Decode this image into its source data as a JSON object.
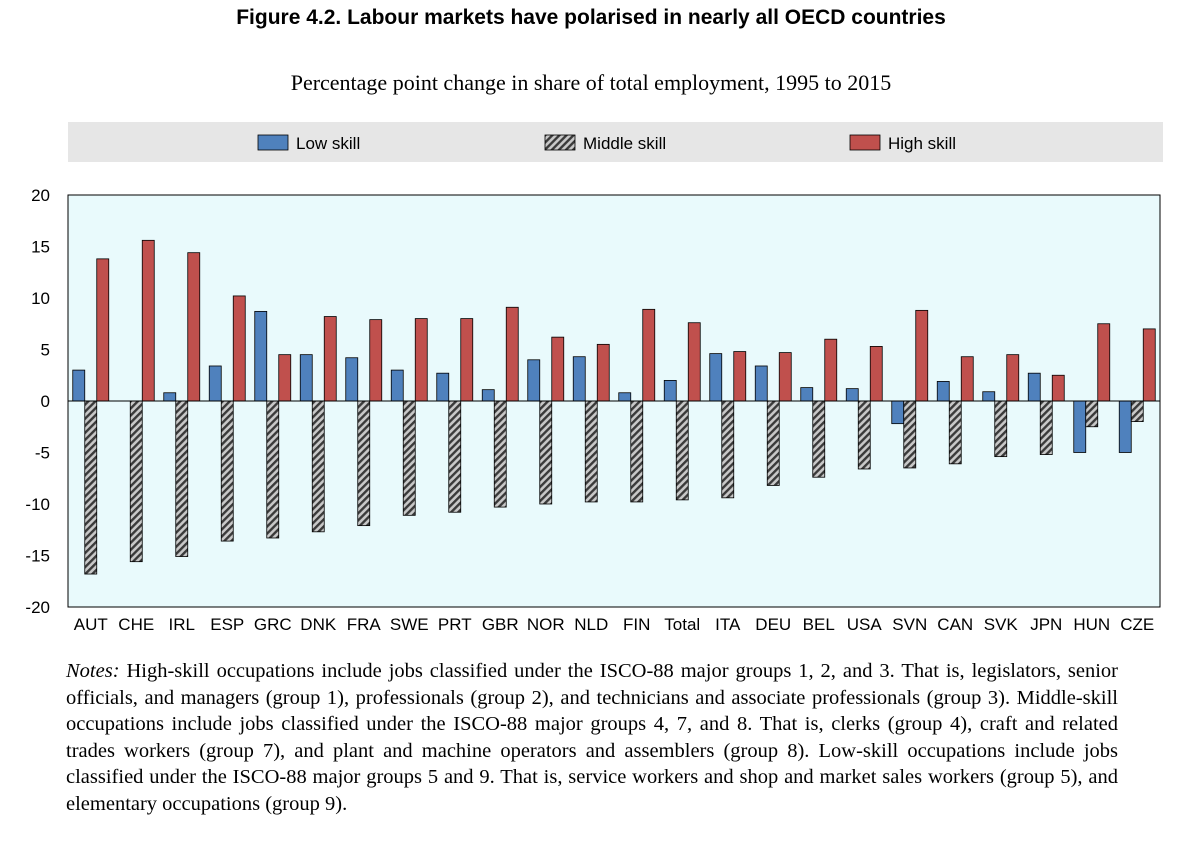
{
  "page": {
    "title": "Figure 4.2. Labour markets have polarised in nearly all OECD countries",
    "subtitle": "Percentage point change in share of total employment, 1995 to 2015",
    "notes_label": "Notes:",
    "notes_text": "High-skill occupations include jobs classified under the ISCO-88 major groups 1, 2, and 3. That is, legislators, senior officials, and managers (group 1), professionals (group 2), and technicians and associate professionals (group 3). Middle-skill occupations include jobs classified under the ISCO-88 major groups 4, 7, and 8. That is, clerks (group 4), craft and related trades workers (group 7), and plant and machine operators and assemblers (group 8). Low-skill occupations include jobs classified under the ISCO-88 major groups 5 and 9. That is, service workers and shop and market sales workers (group 5), and elementary occupations (group 9)."
  },
  "chart_data": {
    "type": "bar",
    "title": "Figure 4.2. Labour markets have polarised in nearly all OECD countries",
    "subtitle": "Percentage point change in share of total employment, 1995 to 2015",
    "xlabel": "",
    "ylabel": "",
    "ylim": [
      -20,
      20
    ],
    "yticks": [
      20,
      15,
      10,
      5,
      0,
      -5,
      -10,
      -15,
      -20
    ],
    "grid": false,
    "legend_position": "top",
    "categories": [
      "AUT",
      "CHE",
      "IRL",
      "ESP",
      "GRC",
      "DNK",
      "FRA",
      "SWE",
      "PRT",
      "GBR",
      "NOR",
      "NLD",
      "FIN",
      "Total",
      "ITA",
      "DEU",
      "BEL",
      "USA",
      "SVN",
      "CAN",
      "SVK",
      "JPN",
      "HUN",
      "CZE"
    ],
    "series": [
      {
        "name": "Low skill",
        "color": "#4f81bd",
        "pattern": "solid",
        "values": [
          3.0,
          0.0,
          0.8,
          3.4,
          8.7,
          4.5,
          4.2,
          3.0,
          2.7,
          1.1,
          4.0,
          4.3,
          0.8,
          2.0,
          4.6,
          3.4,
          1.3,
          1.2,
          -2.2,
          1.9,
          0.9,
          2.7,
          -5.0,
          -5.0
        ]
      },
      {
        "name": "Middle skill",
        "color": "#808080",
        "pattern": "hatched",
        "values": [
          -16.8,
          -15.6,
          -15.1,
          -13.6,
          -13.3,
          -12.7,
          -12.1,
          -11.1,
          -10.8,
          -10.3,
          -10.0,
          -9.8,
          -9.8,
          -9.6,
          -9.4,
          -8.2,
          -7.4,
          -6.6,
          -6.5,
          -6.1,
          -5.4,
          -5.2,
          -2.5,
          -2.0
        ]
      },
      {
        "name": "High skill",
        "color": "#c0504d",
        "pattern": "solid",
        "values": [
          13.8,
          15.6,
          14.4,
          10.2,
          4.5,
          8.2,
          7.9,
          8.0,
          8.0,
          9.1,
          6.2,
          5.5,
          8.9,
          7.6,
          4.8,
          4.7,
          6.0,
          5.3,
          8.8,
          4.3,
          4.5,
          2.5,
          7.5,
          7.0
        ]
      }
    ]
  }
}
